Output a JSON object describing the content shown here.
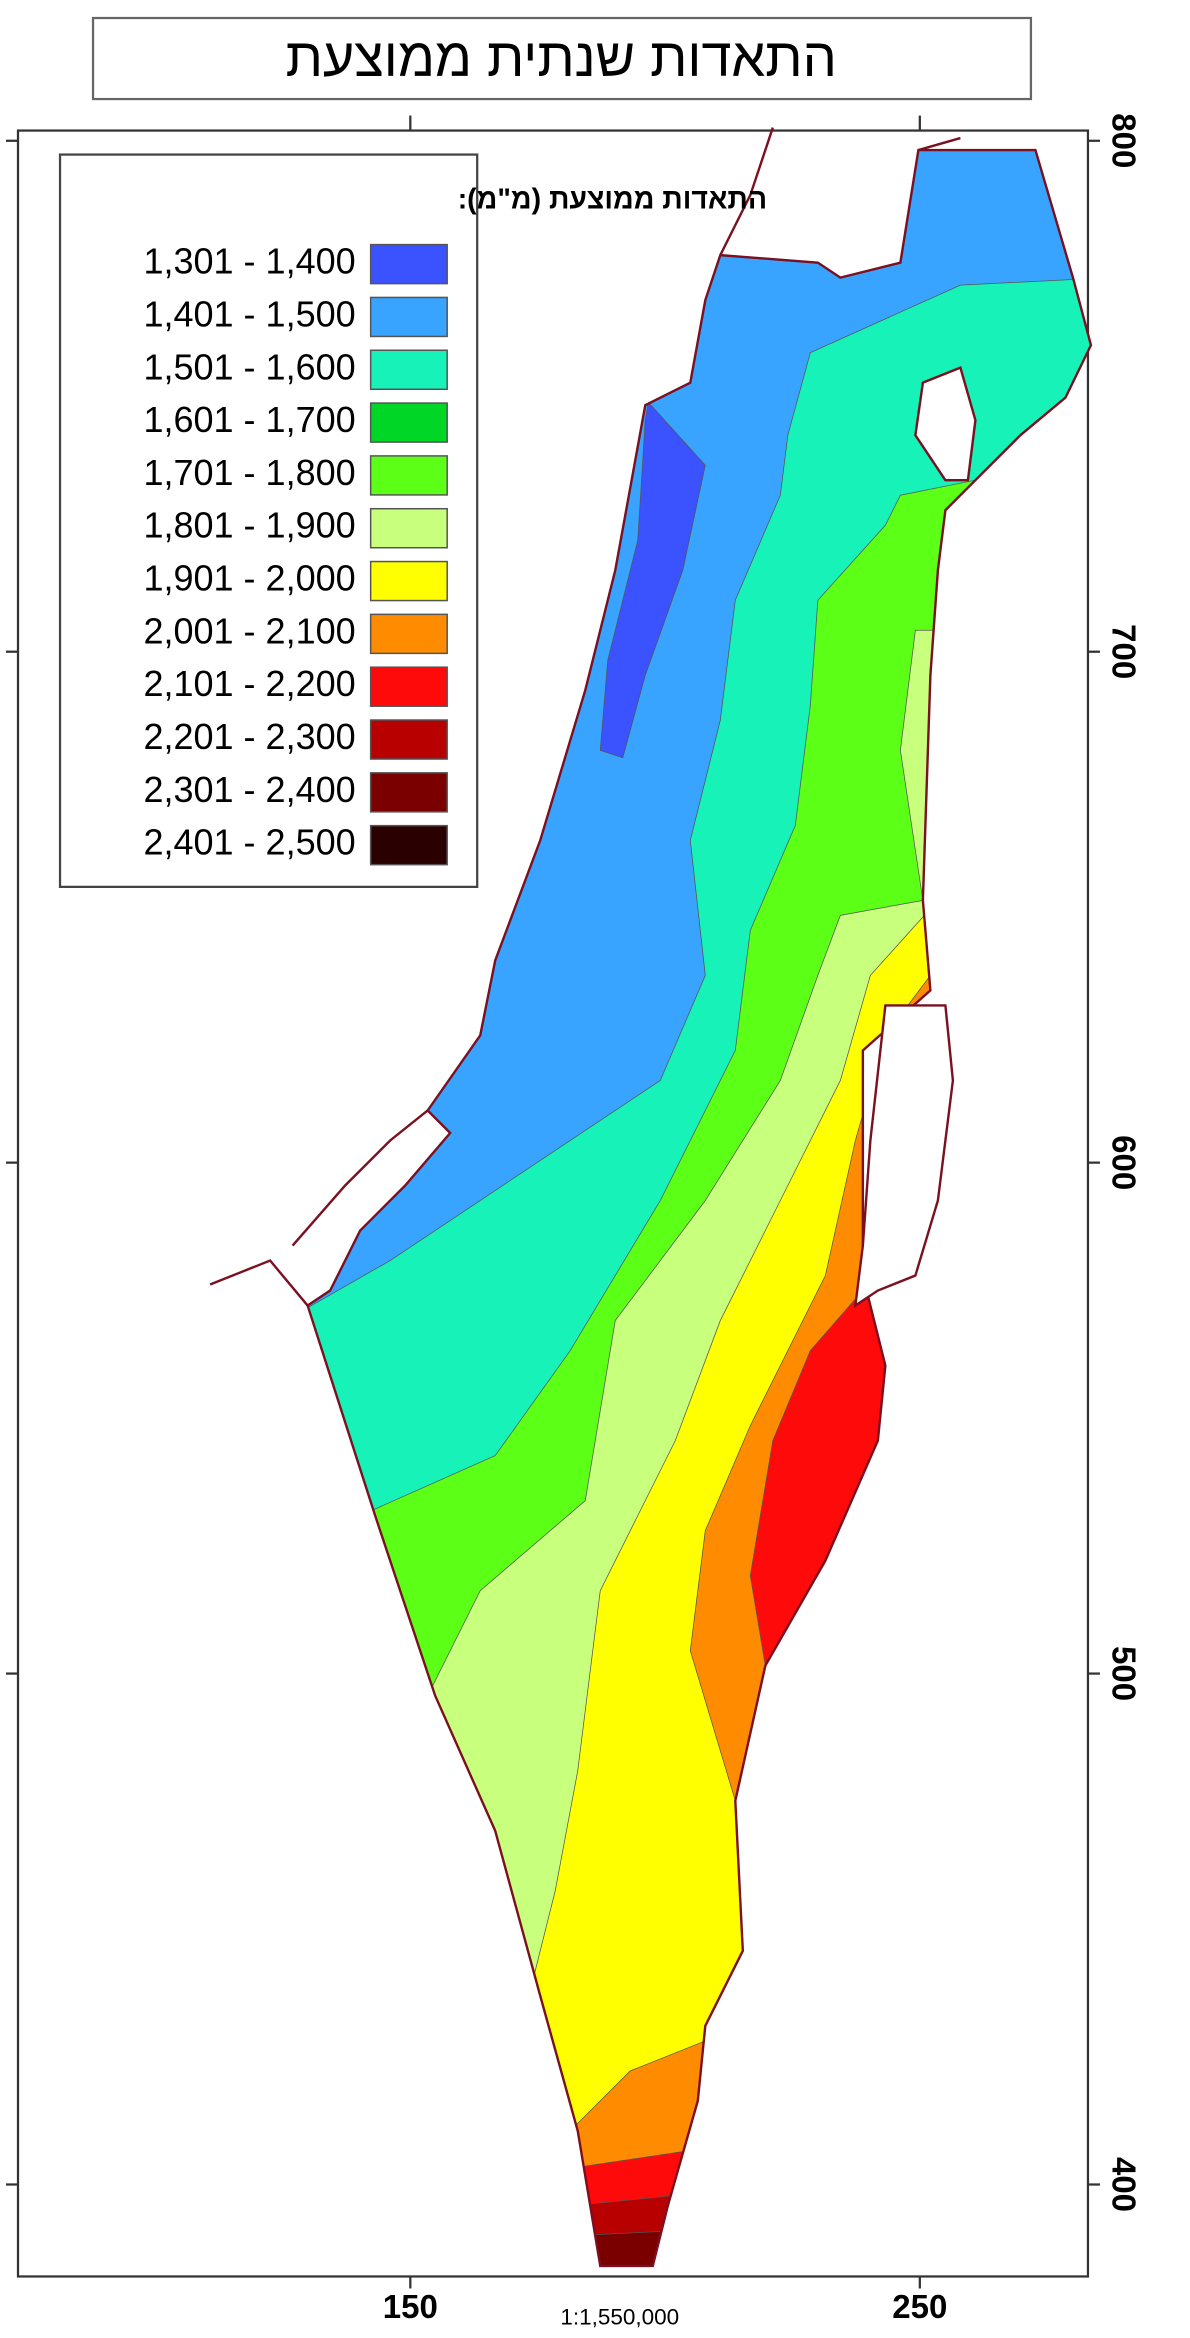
{
  "title": "התאדות שנתית ממוצעת",
  "legend": {
    "title": "התאדות ממוצעת (מ\"מ):",
    "items": [
      {
        "label": "1,301 - 1,400",
        "color": "#3a52ff"
      },
      {
        "label": "1,401 - 1,500",
        "color": "#38a4ff"
      },
      {
        "label": "1,501 - 1,600",
        "color": "#16f2b8"
      },
      {
        "label": "1,601 - 1,700",
        "color": "#00d625"
      },
      {
        "label": "1,701 - 1,800",
        "color": "#5cff16"
      },
      {
        "label": "1,801 - 1,900",
        "color": "#c8ff7c"
      },
      {
        "label": "1,901 - 2,000",
        "color": "#ffff00"
      },
      {
        "label": "2,001 - 2,100",
        "color": "#ff8c00"
      },
      {
        "label": "2,101 - 2,200",
        "color": "#ff0a0a"
      },
      {
        "label": "2,201 - 2,300",
        "color": "#b80000"
      },
      {
        "label": "2,301 - 2,400",
        "color": "#7a0000"
      },
      {
        "label": "2,401 - 2,500",
        "color": "#2a0000"
      }
    ]
  },
  "xlim": [
    73,
    283
  ],
  "xticks": [
    150,
    250
  ],
  "ylim": [
    382,
    802
  ],
  "yticks": [
    400,
    500,
    600,
    700,
    800
  ],
  "scale": "1:1,550,000"
}
